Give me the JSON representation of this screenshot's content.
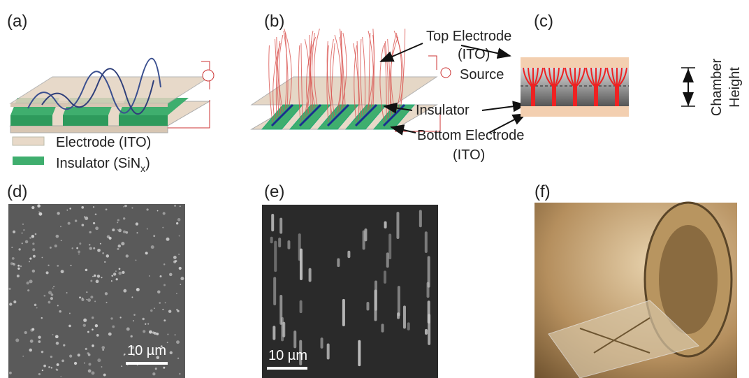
{
  "panel_labels": [
    "(a)",
    "(b)",
    "(c)",
    "(d)",
    "(e)",
    "(f)"
  ],
  "legend": [
    {
      "label": "Electrode (ITO)"
    },
    {
      "label": "Insulator (SiN",
      "subscript": "x",
      "suffix": ")"
    }
  ],
  "annotations": {
    "top_electrode": [
      "Top Electrode",
      "(ITO)"
    ],
    "source": "Source",
    "insulator": "Insulator",
    "bottom_electrode": [
      "Bottom Electrode",
      "(ITO)"
    ],
    "chamber_height": [
      "Chamber",
      "Height"
    ]
  },
  "scale_bars": [
    "10 µm",
    "10 µm"
  ]
}
